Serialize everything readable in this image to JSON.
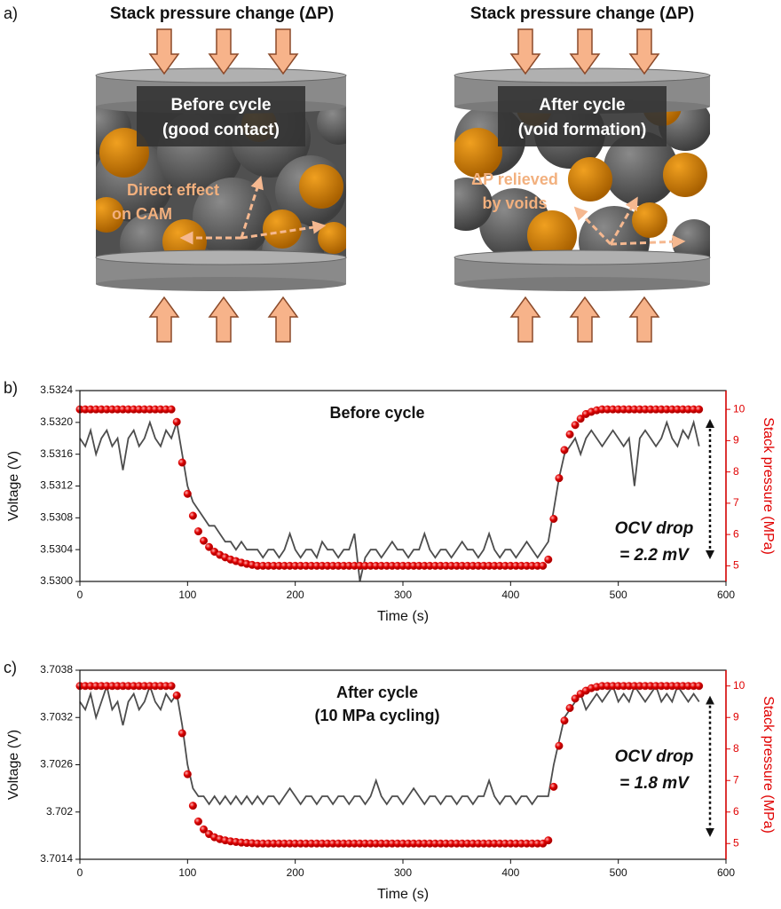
{
  "panel_a": {
    "label": "a)",
    "left": {
      "title": "Stack pressure change (ΔP)",
      "box": [
        "Before cycle",
        "(good contact)"
      ],
      "note": [
        "Direct effect",
        "on CAM"
      ]
    },
    "right": {
      "title": "Stack pressure change (ΔP)",
      "box": [
        "After cycle",
        "(void formation)"
      ],
      "note": [
        "ΔP relieved",
        "by voids"
      ]
    }
  },
  "chart_data": [
    {
      "type": "line",
      "label": "b)",
      "title": [
        "Before cycle"
      ],
      "annotation": [
        "OCV drop",
        "= 2.2 mV"
      ],
      "x_label": "Time (s)",
      "y_label": "Voltage (V)",
      "y2_label": "Stack pressure (MPa)",
      "xlim": [
        0,
        600
      ],
      "xticks": [
        0,
        100,
        200,
        300,
        400,
        500,
        600
      ],
      "ylim": [
        3.53,
        3.5324
      ],
      "yticks": [
        {
          "value": 3.53,
          "label": "3.5300"
        },
        3.5304,
        3.5308,
        3.5312,
        3.5316,
        {
          "value": 3.532,
          "label": "3.5320"
        },
        3.5324
      ],
      "y2lim": [
        4.5,
        10.6
      ],
      "y2ticks": [
        5,
        6,
        7,
        8,
        9,
        10
      ],
      "x": [
        0,
        5,
        10,
        15,
        20,
        25,
        30,
        35,
        40,
        45,
        50,
        55,
        60,
        65,
        70,
        75,
        80,
        85,
        90,
        95,
        100,
        105,
        110,
        115,
        120,
        125,
        130,
        135,
        140,
        145,
        150,
        155,
        160,
        165,
        170,
        175,
        180,
        185,
        190,
        195,
        200,
        205,
        210,
        215,
        220,
        225,
        230,
        235,
        240,
        245,
        250,
        255,
        260,
        265,
        270,
        275,
        280,
        285,
        290,
        295,
        300,
        305,
        310,
        315,
        320,
        325,
        330,
        335,
        340,
        345,
        350,
        355,
        360,
        365,
        370,
        375,
        380,
        385,
        390,
        395,
        400,
        405,
        410,
        415,
        420,
        425,
        430,
        435,
        440,
        445,
        450,
        455,
        460,
        465,
        470,
        475,
        480,
        485,
        490,
        495,
        500,
        505,
        510,
        515,
        520,
        525,
        530,
        535,
        540,
        545,
        550,
        555,
        560,
        565,
        570,
        575
      ],
      "series": [
        {
          "name": "Voltage",
          "mode": "line",
          "color": "#4d4d4d",
          "values": [
            3.5318,
            3.5317,
            3.5319,
            3.5316,
            3.5318,
            3.5319,
            3.5317,
            3.5318,
            3.5314,
            3.5318,
            3.5319,
            3.5317,
            3.5318,
            3.532,
            3.5318,
            3.5317,
            3.5319,
            3.5318,
            3.532,
            3.5316,
            3.5312,
            3.531,
            3.5309,
            3.5308,
            3.5307,
            3.5307,
            3.5306,
            3.5305,
            3.5305,
            3.5304,
            3.5305,
            3.5304,
            3.5304,
            3.5304,
            3.5303,
            3.5304,
            3.5304,
            3.5303,
            3.5304,
            3.5306,
            3.5304,
            3.5303,
            3.5304,
            3.5304,
            3.5303,
            3.5305,
            3.5304,
            3.5304,
            3.5303,
            3.5304,
            3.5304,
            3.5306,
            3.53,
            3.5303,
            3.5304,
            3.5304,
            3.5303,
            3.5304,
            3.5305,
            3.5304,
            3.5304,
            3.5303,
            3.5304,
            3.5304,
            3.5306,
            3.5304,
            3.5303,
            3.5304,
            3.5304,
            3.5303,
            3.5304,
            3.5305,
            3.5304,
            3.5304,
            3.5303,
            3.5304,
            3.5306,
            3.5304,
            3.5303,
            3.5304,
            3.5304,
            3.5303,
            3.5304,
            3.5305,
            3.5304,
            3.5303,
            3.5304,
            3.5305,
            3.5309,
            3.5313,
            3.5316,
            3.5317,
            3.5318,
            3.5316,
            3.5318,
            3.5319,
            3.5318,
            3.5317,
            3.5318,
            3.5319,
            3.5318,
            3.5317,
            3.5318,
            3.5312,
            3.5318,
            3.5319,
            3.5318,
            3.5317,
            3.5318,
            3.532,
            3.5318,
            3.5317,
            3.5319,
            3.5318,
            3.532,
            3.5317
          ]
        },
        {
          "name": "Stack pressure",
          "mode": "markers",
          "axis": "y2",
          "color": "#e00000",
          "values": [
            10,
            10,
            10,
            10,
            10,
            10,
            10,
            10,
            10,
            10,
            10,
            10,
            10,
            10,
            10,
            10,
            10,
            10,
            9.6,
            8.3,
            7.3,
            6.6,
            6.1,
            5.8,
            5.6,
            5.45,
            5.35,
            5.27,
            5.2,
            5.15,
            5.1,
            5.06,
            5.03,
            5,
            5,
            5,
            5,
            5,
            5,
            5,
            5,
            5,
            5,
            5,
            5,
            5,
            5,
            5,
            5,
            5,
            5,
            5,
            5,
            5,
            5,
            5,
            5,
            5,
            5,
            5,
            5,
            5,
            5,
            5,
            5,
            5,
            5,
            5,
            5,
            5,
            5,
            5,
            5,
            5,
            5,
            5,
            5,
            5,
            5,
            5,
            5,
            5,
            5,
            5,
            5,
            5,
            5,
            5.2,
            6.5,
            7.8,
            8.7,
            9.2,
            9.5,
            9.7,
            9.85,
            9.92,
            9.97,
            10,
            10,
            10,
            10,
            10,
            10,
            10,
            10,
            10,
            10,
            10,
            10,
            10,
            10,
            10,
            10,
            10,
            10,
            10
          ]
        }
      ]
    },
    {
      "type": "line",
      "label": "c)",
      "title": [
        "After cycle",
        "(10 MPa cycling)"
      ],
      "annotation": [
        "OCV drop",
        "= 1.8 mV"
      ],
      "x_label": "Time (s)",
      "y_label": "Voltage (V)",
      "y2_label": "Stack pressure (MPa)",
      "xlim": [
        0,
        600
      ],
      "xticks": [
        0,
        100,
        200,
        300,
        400,
        500,
        600
      ],
      "ylim": [
        3.7014,
        3.7038
      ],
      "yticks": [
        3.7014,
        3.702,
        3.7026,
        3.7032,
        3.7038
      ],
      "y2lim": [
        4.5,
        10.5
      ],
      "y2ticks": [
        5,
        6,
        7,
        8,
        9,
        10
      ],
      "x": [
        0,
        5,
        10,
        15,
        20,
        25,
        30,
        35,
        40,
        45,
        50,
        55,
        60,
        65,
        70,
        75,
        80,
        85,
        90,
        95,
        100,
        105,
        110,
        115,
        120,
        125,
        130,
        135,
        140,
        145,
        150,
        155,
        160,
        165,
        170,
        175,
        180,
        185,
        190,
        195,
        200,
        205,
        210,
        215,
        220,
        225,
        230,
        235,
        240,
        245,
        250,
        255,
        260,
        265,
        270,
        275,
        280,
        285,
        290,
        295,
        300,
        305,
        310,
        315,
        320,
        325,
        330,
        335,
        340,
        345,
        350,
        355,
        360,
        365,
        370,
        375,
        380,
        385,
        390,
        395,
        400,
        405,
        410,
        415,
        420,
        425,
        430,
        435,
        440,
        445,
        450,
        455,
        460,
        465,
        470,
        475,
        480,
        485,
        490,
        495,
        500,
        505,
        510,
        515,
        520,
        525,
        530,
        535,
        540,
        545,
        550,
        555,
        560,
        565,
        570,
        575
      ],
      "series": [
        {
          "name": "Voltage",
          "mode": "line",
          "color": "#4d4d4d",
          "values": [
            3.7034,
            3.7033,
            3.7035,
            3.7032,
            3.7034,
            3.7036,
            3.7033,
            3.7034,
            3.7031,
            3.7034,
            3.7035,
            3.7033,
            3.7034,
            3.7036,
            3.7034,
            3.7033,
            3.7035,
            3.7034,
            3.7035,
            3.7031,
            3.7026,
            3.7023,
            3.7022,
            3.7022,
            3.7021,
            3.7022,
            3.7021,
            3.7022,
            3.7021,
            3.7022,
            3.7021,
            3.7022,
            3.7021,
            3.7022,
            3.7021,
            3.7022,
            3.7022,
            3.7021,
            3.7022,
            3.7023,
            3.7022,
            3.7021,
            3.7022,
            3.7022,
            3.7021,
            3.7022,
            3.7022,
            3.7021,
            3.7022,
            3.7022,
            3.7021,
            3.7022,
            3.7022,
            3.7021,
            3.7022,
            3.7024,
            3.7022,
            3.7021,
            3.7022,
            3.7022,
            3.7021,
            3.7022,
            3.7023,
            3.7022,
            3.7021,
            3.7022,
            3.7022,
            3.7021,
            3.7022,
            3.7022,
            3.7021,
            3.7022,
            3.7022,
            3.7021,
            3.7022,
            3.7022,
            3.7024,
            3.7022,
            3.7021,
            3.7022,
            3.7022,
            3.7021,
            3.7022,
            3.7022,
            3.7021,
            3.7022,
            3.7022,
            3.7022,
            3.7026,
            3.7029,
            3.7032,
            3.7033,
            3.7034,
            3.7035,
            3.7033,
            3.7034,
            3.7035,
            3.7034,
            3.7035,
            3.7036,
            3.7034,
            3.7035,
            3.7034,
            3.7036,
            3.7035,
            3.7034,
            3.7035,
            3.7036,
            3.7034,
            3.7035,
            3.7034,
            3.7036,
            3.7035,
            3.7034,
            3.7035,
            3.7034
          ]
        },
        {
          "name": "Stack pressure",
          "mode": "markers",
          "axis": "y2",
          "color": "#e00000",
          "values": [
            10,
            10,
            10,
            10,
            10,
            10,
            10,
            10,
            10,
            10,
            10,
            10,
            10,
            10,
            10,
            10,
            10,
            10,
            9.7,
            8.5,
            7.2,
            6.2,
            5.7,
            5.45,
            5.3,
            5.2,
            5.14,
            5.1,
            5.07,
            5.05,
            5.03,
            5.02,
            5.01,
            5,
            5,
            5,
            5,
            5,
            5,
            5,
            5,
            5,
            5,
            5,
            5,
            5,
            5,
            5,
            5,
            5,
            5,
            5,
            5,
            5,
            5,
            5,
            5,
            5,
            5,
            5,
            5,
            5,
            5,
            5,
            5,
            5,
            5,
            5,
            5,
            5,
            5,
            5,
            5,
            5,
            5,
            5,
            5,
            5,
            5,
            5,
            5,
            5,
            5,
            5,
            5,
            5,
            5,
            5.1,
            6.8,
            8.1,
            8.9,
            9.3,
            9.6,
            9.75,
            9.85,
            9.93,
            9.97,
            10,
            10,
            10,
            10,
            10,
            10,
            10,
            10,
            10,
            10,
            10,
            10,
            10,
            10,
            10,
            10,
            10,
            10,
            10
          ]
        }
      ]
    }
  ]
}
